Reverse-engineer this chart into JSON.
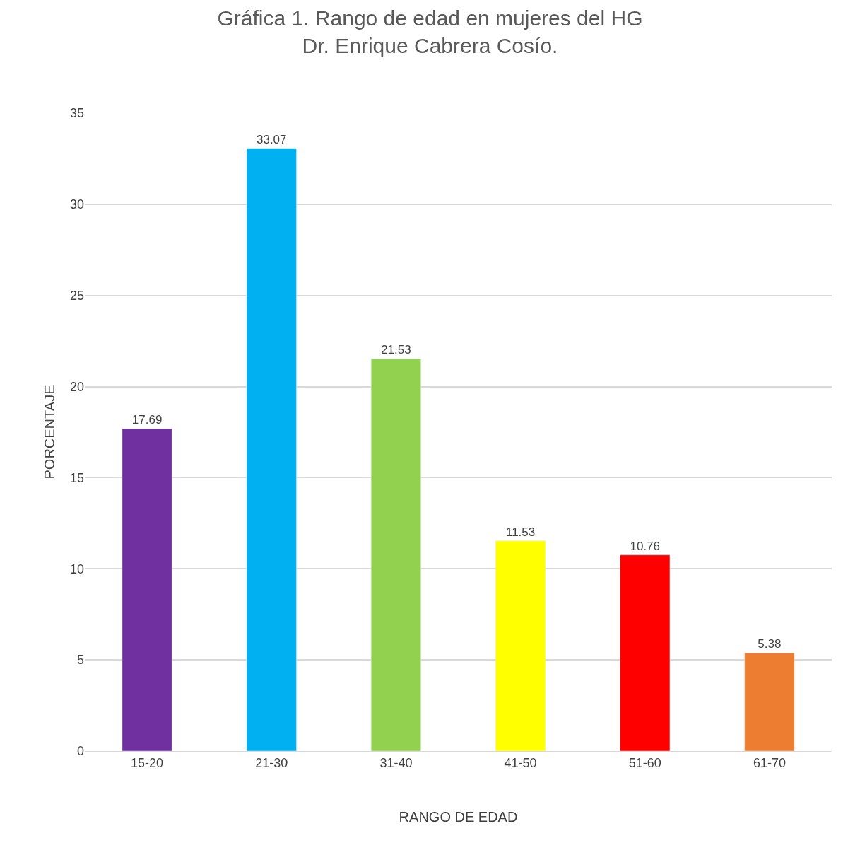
{
  "chart_data": {
    "type": "bar",
    "title": "Gráfica 1. Rango de edad en mujeres del HG\nDr. Enrique Cabrera Cosío.",
    "xlabel": "RANGO DE EDAD",
    "ylabel": "PORCENTAJE",
    "categories": [
      "15-20",
      "21-30",
      "31-40",
      "41-50",
      "51-60",
      "61-70"
    ],
    "values": [
      17.69,
      33.07,
      21.53,
      11.53,
      10.76,
      5.38
    ],
    "colors": [
      "#7030a0",
      "#00b0f0",
      "#92d050",
      "#ffff00",
      "#ff0000",
      "#ed7d31"
    ],
    "ylim": [
      0,
      35
    ],
    "yticks": [
      0,
      5,
      10,
      15,
      20,
      25,
      30,
      35
    ],
    "grid": "y",
    "data_labels": true
  }
}
